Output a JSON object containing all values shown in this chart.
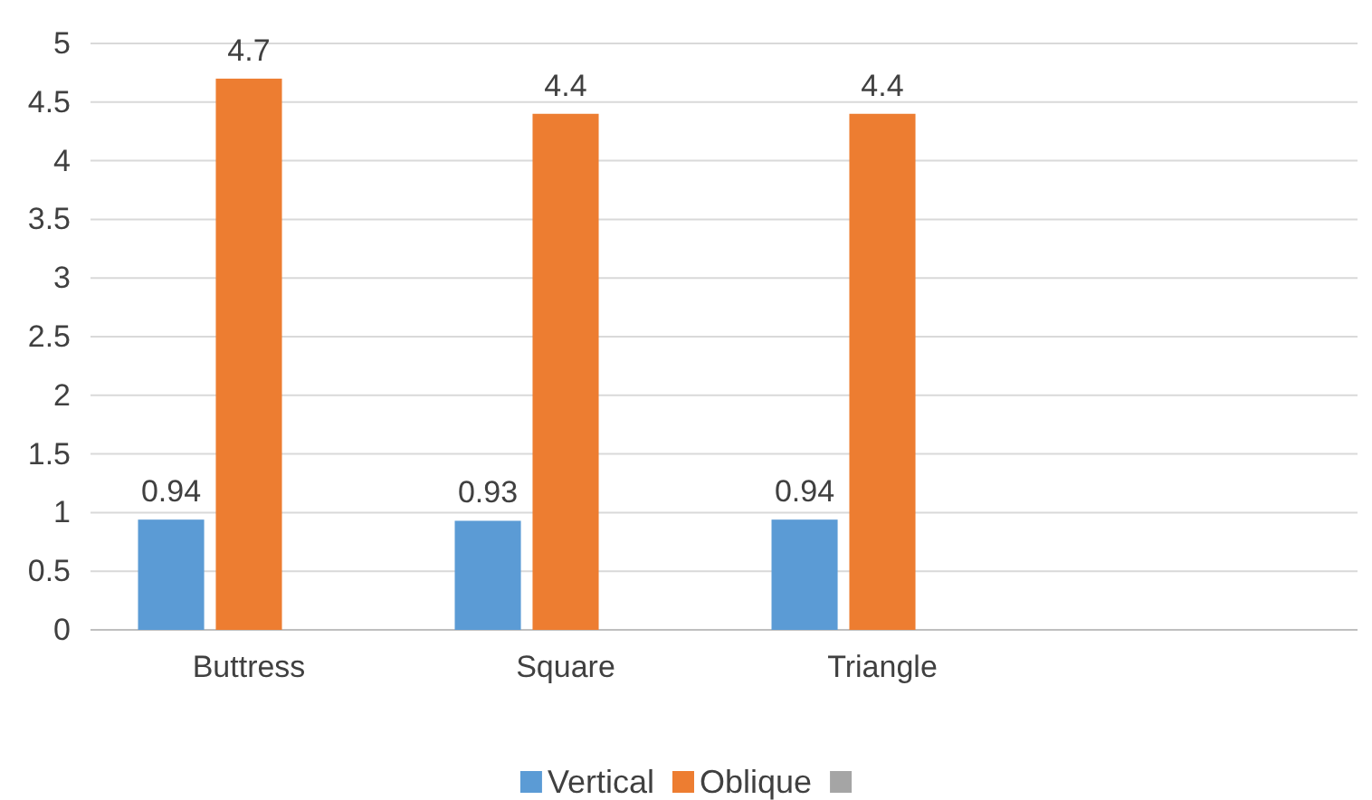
{
  "chart_data": {
    "type": "bar",
    "categories": [
      "Buttress",
      "Square",
      "Triangle",
      null
    ],
    "series": [
      {
        "name": "Vertical",
        "color": "#5b9bd5",
        "values": [
          0.94,
          0.93,
          0.94,
          null
        ]
      },
      {
        "name": "Oblique",
        "color": "#ed7d31",
        "values": [
          4.7,
          4.4,
          4.4,
          null
        ]
      },
      {
        "color": "#a5a5a5",
        "values": [
          null,
          null,
          null,
          null
        ]
      }
    ],
    "ylim": [
      0,
      5
    ],
    "yticks": [
      0,
      0.5,
      1,
      1.5,
      2,
      2.5,
      3,
      3.5,
      4,
      4.5,
      5
    ],
    "grid": "y",
    "legend": "bottom",
    "data_labels": true
  }
}
